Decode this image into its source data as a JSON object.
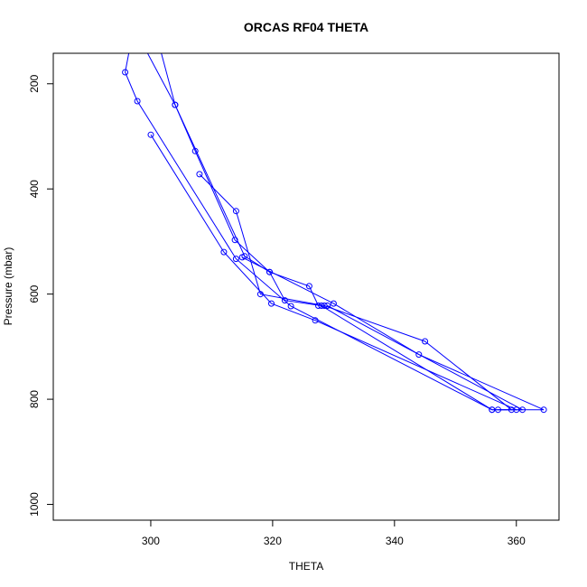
{
  "chart_data": {
    "type": "line",
    "title": "ORCAS RF04 THETA",
    "xlabel": "THETA",
    "ylabel": "Pressure (mbar)",
    "xlim": [
      284,
      367
    ],
    "ylim": [
      1030,
      142
    ],
    "y_axis_reversed": true,
    "x_ticks": [
      300,
      320,
      340,
      360
    ],
    "y_ticks": [
      200,
      400,
      600,
      800,
      1000
    ],
    "line_color": "#0000ff",
    "grid": false,
    "legend": "none",
    "marker": "open-circle",
    "series": [
      {
        "points": [
          [
            297.0,
            105
          ],
          [
            295.8,
            178
          ],
          [
            297.8,
            233
          ],
          [
            314,
            533
          ],
          [
            323,
            623
          ],
          [
            356,
            820
          ],
          [
            364.5,
            820
          ],
          [
            344,
            715
          ],
          [
            330,
            618
          ],
          [
            315,
            530
          ]
        ]
      },
      {
        "points": [
          [
            300.0,
            297
          ],
          [
            312,
            520
          ],
          [
            319.8,
            618
          ],
          [
            327,
            650
          ],
          [
            360,
            820
          ],
          [
            357,
            820
          ]
        ]
      },
      {
        "points": [
          [
            301,
            110
          ],
          [
            304,
            240
          ],
          [
            307.3,
            328
          ],
          [
            313.8,
            497
          ],
          [
            319.5,
            558
          ],
          [
            322,
            612
          ],
          [
            328,
            622
          ],
          [
            356,
            820
          ],
          [
            361,
            820
          ],
          [
            329,
            622
          ]
        ]
      },
      {
        "points": [
          [
            308,
            372
          ],
          [
            314,
            442
          ],
          [
            318,
            600
          ],
          [
            328.5,
            622
          ],
          [
            345,
            690
          ],
          [
            359.2,
            820
          ]
        ]
      },
      {
        "points": [
          [
            298,
            110
          ],
          [
            304,
            240
          ],
          [
            315.4,
            528
          ],
          [
            319.5,
            558
          ],
          [
            326,
            585
          ],
          [
            327.5,
            622
          ]
        ]
      }
    ]
  }
}
